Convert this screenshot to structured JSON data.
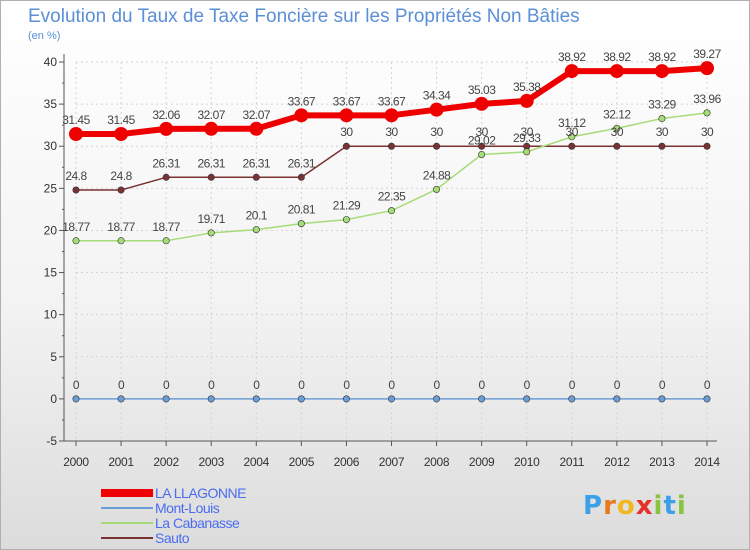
{
  "chart_data": {
    "type": "line",
    "title": "Evolution du Taux de Taxe Foncière sur les Propriétés Non Bâties",
    "unit_label": "(en %)",
    "x": [
      "2000",
      "2001",
      "2002",
      "2003",
      "2004",
      "2005",
      "2006",
      "2007",
      "2008",
      "2009",
      "2010",
      "2011",
      "2012",
      "2013",
      "2014"
    ],
    "ylim": [
      -5,
      40
    ],
    "yticks": [
      "-5",
      "0",
      "5",
      "10",
      "15",
      "20",
      "25",
      "30",
      "35",
      "40"
    ],
    "grid": true,
    "legend_position": "bottom-left",
    "series": [
      {
        "name": "LA LLAGONNE",
        "color": "#ee0000",
        "values": [
          31.45,
          31.45,
          32.06,
          32.07,
          32.07,
          33.67,
          33.67,
          33.67,
          34.34,
          35.03,
          35.38,
          38.92,
          38.92,
          38.92,
          39.27
        ],
        "labels": [
          "31.45",
          "31.45",
          "32.06",
          "32.07",
          "32.07",
          "33.67",
          "33.67",
          "33.67",
          "34.34",
          "35.03",
          "35.38",
          "38.92",
          "38.92",
          "38.92",
          "39.27"
        ]
      },
      {
        "name": "Mont-Louis",
        "color": "#6a9ed8",
        "values": [
          0,
          0,
          0,
          0,
          0,
          0,
          0,
          0,
          0,
          0,
          0,
          0,
          0,
          0,
          0
        ],
        "labels": [
          "0",
          "0",
          "0",
          "0",
          "0",
          "0",
          "0",
          "0",
          "0",
          "0",
          "0",
          "0",
          "0",
          "0",
          "0"
        ]
      },
      {
        "name": "La Cabanasse",
        "color": "#a6dc78",
        "values": [
          18.77,
          18.77,
          18.77,
          19.71,
          20.1,
          20.81,
          21.29,
          22.35,
          24.88,
          29.02,
          29.33,
          31.12,
          32.12,
          33.29,
          33.96
        ],
        "labels": [
          "18.77",
          "18.77",
          "18.77",
          "19.71",
          "20.1",
          "20.81",
          "21.29",
          "22.35",
          "24.88",
          "29.02",
          "29.33",
          "31.12",
          "32.12",
          "33.29",
          "33.96"
        ]
      },
      {
        "name": "Sauto",
        "color": "#7a3232",
        "values": [
          24.8,
          24.8,
          26.31,
          26.31,
          26.31,
          26.31,
          30,
          30,
          30,
          30,
          30,
          30,
          30,
          30,
          30
        ],
        "labels": [
          "24.8",
          "24.8",
          "26.31",
          "26.31",
          "26.31",
          "26.31",
          "30",
          "30",
          "30",
          "30",
          "30",
          "30",
          "30",
          "30",
          "30"
        ]
      }
    ]
  },
  "logo": {
    "letters": [
      "P",
      "r",
      "o",
      "x",
      "i",
      "t",
      "i"
    ],
    "colors": [
      "#3aa0e8",
      "#e87a1e",
      "#f2b620",
      "#e8302a",
      "#8ac43f",
      "#3aa0e8",
      "#8ac43f"
    ]
  }
}
